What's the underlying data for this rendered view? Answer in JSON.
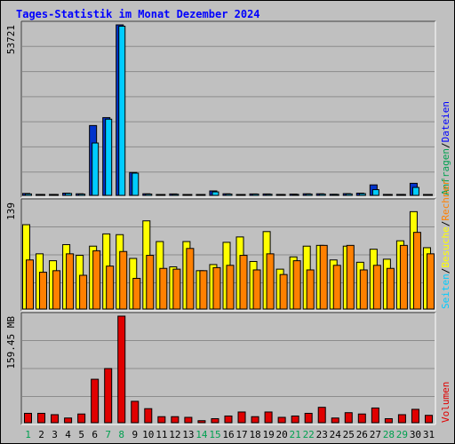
{
  "title": "Tages-Statistik im Monat Dezember 2024",
  "colors": {
    "background": "#c0c0c0",
    "title": "#0000ff",
    "grid": "#8c8c8c",
    "hits_dark": "#0033cc",
    "files_light": "#00ccff",
    "pages_light": "#ffff00",
    "visits_orange": "#ff8000",
    "volume_red": "#e00000",
    "weekend_label": "#00a050",
    "weekday_label": "#000000"
  },
  "legend": {
    "top": [
      {
        "text": "Anfragen",
        "color": "#00a050"
      },
      {
        "text": "/",
        "color": "#000000"
      },
      {
        "text": "Dateien",
        "color": "#0000ff"
      }
    ],
    "middle": [
      {
        "text": "Seiten",
        "color": "#00ccff"
      },
      {
        "text": "/",
        "color": "#000000"
      },
      {
        "text": "Besuche",
        "color": "#ffff00"
      },
      {
        "text": "/",
        "color": "#000000"
      },
      {
        "text": "Rechner",
        "color": "#ff8000"
      }
    ],
    "bottom": [
      {
        "text": "Volumen",
        "color": "#e00000"
      }
    ]
  },
  "chart_data": [
    {
      "type": "bar",
      "panel": "Anfragen / Dateien",
      "ymax_label": "53721",
      "ylim": [
        0,
        53721
      ],
      "categories": [
        "1",
        "2",
        "3",
        "4",
        "5",
        "6",
        "7",
        "8",
        "9",
        "10",
        "11",
        "12",
        "13",
        "14",
        "15",
        "16",
        "17",
        "18",
        "19",
        "20",
        "21",
        "22",
        "23",
        "24",
        "25",
        "26",
        "27",
        "28",
        "29",
        "30",
        "31"
      ],
      "weekend_days": [
        "1",
        "7",
        "8",
        "14",
        "15",
        "21",
        "22",
        "28",
        "29"
      ],
      "series": [
        {
          "name": "Anfragen",
          "values": [
            600,
            300,
            300,
            700,
            500,
            22000,
            24500,
            53721,
            7200,
            500,
            250,
            450,
            250,
            200,
            1400,
            500,
            250,
            450,
            450,
            300,
            400,
            500,
            500,
            350,
            550,
            700,
            3300,
            300,
            300,
            3800,
            250
          ]
        },
        {
          "name": "Dateien",
          "values": [
            450,
            200,
            200,
            600,
            400,
            16500,
            24000,
            53300,
            7000,
            400,
            200,
            350,
            200,
            150,
            1100,
            400,
            200,
            400,
            350,
            250,
            300,
            400,
            400,
            300,
            450,
            550,
            1800,
            250,
            250,
            2500,
            200
          ]
        }
      ]
    },
    {
      "type": "bar",
      "panel": "Seiten / Besuche / Rechner",
      "ymax_label": "139",
      "ylim": [
        0,
        139
      ],
      "series": [
        {
          "name": "Besuche",
          "values": [
            110,
            72,
            63,
            84,
            70,
            82,
            98,
            97,
            66,
            115,
            88,
            55,
            88,
            50,
            58,
            87,
            94,
            62,
            101,
            52,
            68,
            82,
            83,
            64,
            82,
            61,
            78,
            65,
            89,
            127,
            80
          ]
        },
        {
          "name": "Rechner",
          "values": [
            64,
            48,
            50,
            72,
            44,
            76,
            56,
            75,
            40,
            70,
            53,
            52,
            79,
            50,
            54,
            57,
            70,
            51,
            72,
            45,
            63,
            51,
            83,
            57,
            83,
            51,
            57,
            53,
            83,
            100,
            72
          ]
        }
      ]
    },
    {
      "type": "bar",
      "panel": "Volumen",
      "ymax_label": "159.45 MB",
      "ylim": [
        0,
        159.45
      ],
      "values": [
        14,
        14,
        12,
        7,
        13,
        65,
        81,
        159.45,
        32,
        21,
        9,
        9,
        8,
        3,
        6,
        10,
        16,
        9,
        16,
        8,
        10,
        14,
        23,
        7,
        15,
        13,
        22,
        6,
        12,
        20,
        11
      ]
    }
  ]
}
